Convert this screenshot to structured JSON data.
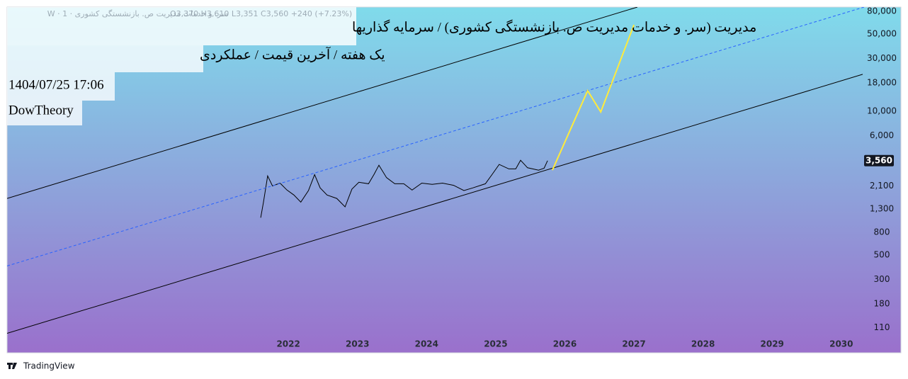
{
  "chart_data": {
    "type": "line",
    "legend_symbol": "سر. و خدمات مدیریت ص. بازنشستگی کشوری · 1 · W",
    "ohlc": "O3,370  H3,610  L3,351  C3,560  +240 (+7.23%)",
    "title": "مدیریت (سر. و خدمات مدیریت ص. بازنشستگی کشوری) / سرمایه گذاریها",
    "subtitle": "یک هفته / آخرین قیمت / عملکردی",
    "timestamp": "1404/07/25 17:06",
    "author": "DowTheory",
    "brand": "TradingView",
    "xlim": [
      2017.93,
      2030.33
    ],
    "xticks": [
      2022,
      2023,
      2024,
      2025,
      2026,
      2027,
      2028,
      2029,
      2030
    ],
    "ylim": [
      65,
      87300
    ],
    "yscale": "log",
    "yticks": [
      {
        "value": 80000,
        "label": "80,000"
      },
      {
        "value": 50000,
        "label": "50,000"
      },
      {
        "value": 30000,
        "label": "30,000"
      },
      {
        "value": 18000,
        "label": "18,000"
      },
      {
        "value": 10000,
        "label": "10,000"
      },
      {
        "value": 6000,
        "label": "6,000"
      },
      {
        "value": 2100,
        "label": "2,100"
      },
      {
        "value": 1300,
        "label": "1,300"
      },
      800,
      500,
      300,
      180,
      110
    ],
    "last_price": {
      "value": 3560,
      "label": "3,560"
    },
    "series": [
      {
        "name": "price",
        "color": "#000000",
        "style": "solid",
        "x": [
          2021.6,
          2021.64,
          2021.7,
          2021.77,
          2021.88,
          2021.98,
          2022.08,
          2022.18,
          2022.29,
          2022.38,
          2022.46,
          2022.56,
          2022.7,
          2022.82,
          2022.92,
          2023.02,
          2023.16,
          2023.24,
          2023.31,
          2023.42,
          2023.54,
          2023.67,
          2023.79,
          2023.93,
          2024.08,
          2024.23,
          2024.39,
          2024.54,
          2024.67,
          2024.85,
          2024.95,
          2025.05,
          2025.19,
          2025.29,
          2025.36,
          2025.46,
          2025.62,
          2025.7,
          2025.75
        ],
        "values": [
          1085,
          1500,
          2590,
          2100,
          2230,
          1930,
          1740,
          1500,
          1910,
          2660,
          2020,
          1740,
          1620,
          1360,
          1970,
          2270,
          2200,
          2680,
          3240,
          2500,
          2200,
          2200,
          1930,
          2230,
          2170,
          2230,
          2130,
          1910,
          2020,
          2200,
          2680,
          3290,
          3000,
          3000,
          3590,
          3070,
          2920,
          3040,
          3560
        ]
      },
      {
        "name": "upper channel",
        "color": "#000000",
        "style": "solid",
        "x": [
          2017.93,
          2027.05
        ],
        "values": [
          1620,
          87300
        ]
      },
      {
        "name": "middle channel",
        "color": "#2962ff",
        "style": "dashed",
        "x": [
          2017.93,
          2030.33
        ],
        "values": [
          397,
          87300
        ]
      },
      {
        "name": "lower channel",
        "color": "#000000",
        "style": "solid",
        "x": [
          2017.93,
          2030.31
        ],
        "values": [
          97.5,
          21500
        ]
      },
      {
        "name": "projection",
        "color": "#ffeb3b",
        "style": "solid",
        "x": [
          2025.82,
          2026.33,
          2026.52,
          2027.0
        ],
        "values": [
          2920,
          15300,
          9820,
          60400
        ]
      }
    ]
  }
}
